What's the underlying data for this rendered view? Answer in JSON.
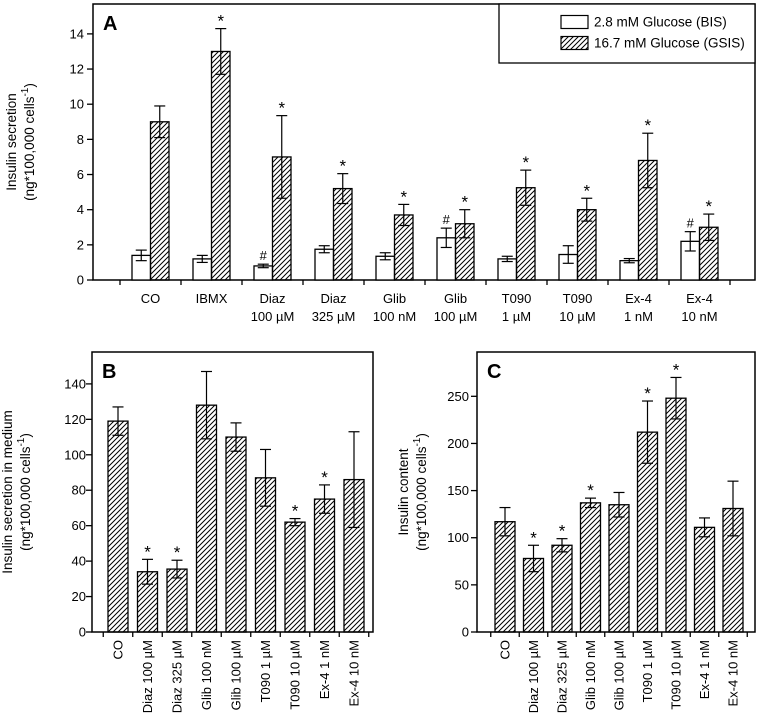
{
  "figure": {
    "background": "#ffffff",
    "foreground": "#000000"
  },
  "chart_data": [
    {
      "id": "A",
      "type": "bar",
      "panel_label": "A",
      "ylabel": "Insulin secretion",
      "ylabel_unit": {
        "prefix": "(ng*100,000 cells",
        "sup": "-1",
        "suffix": ")"
      },
      "ylim": [
        0,
        15.7
      ],
      "yticks": [
        0,
        2,
        4,
        6,
        8,
        10,
        12,
        14
      ],
      "grid": false,
      "categories": [
        [
          "CO"
        ],
        [
          "IBMX"
        ],
        [
          "Diaz",
          "100 µM"
        ],
        [
          "Diaz",
          "325 µM"
        ],
        [
          "Glib",
          "100 nM"
        ],
        [
          "Glib",
          "100 µM"
        ],
        [
          "T090",
          "1 µM"
        ],
        [
          "T090",
          "10 µM"
        ],
        [
          "Ex-4",
          "1 nM"
        ],
        [
          "Ex-4",
          "10 nM"
        ]
      ],
      "series": [
        {
          "name": "2.8 mM Glucose (BIS)",
          "fill": "white",
          "values": [
            1.4,
            1.2,
            0.8,
            1.75,
            1.35,
            2.4,
            1.2,
            1.45,
            1.1,
            2.2
          ],
          "errors": [
            0.3,
            0.2,
            0.1,
            0.2,
            0.2,
            0.55,
            0.15,
            0.5,
            0.12,
            0.55
          ],
          "marks": [
            "",
            "",
            "#",
            "",
            "",
            "#",
            "",
            "",
            "",
            "#"
          ]
        },
        {
          "name": "16.7 mM Glucose (GSIS)",
          "fill": "hatch",
          "values": [
            9.0,
            13.0,
            7.0,
            5.2,
            3.7,
            3.2,
            5.25,
            4.0,
            6.8,
            3.0
          ],
          "errors": [
            0.9,
            1.3,
            2.35,
            0.85,
            0.6,
            0.8,
            1.0,
            0.65,
            1.55,
            0.75
          ],
          "marks": [
            "",
            "*",
            "*",
            "*",
            "*",
            "*",
            "*",
            "*",
            "*",
            "*"
          ]
        }
      ],
      "legend": {
        "position": "top-right",
        "entries": [
          "2.8 mM Glucose (BIS)",
          "16.7 mM Glucose (GSIS)"
        ]
      }
    },
    {
      "id": "B",
      "type": "bar",
      "panel_label": "B",
      "ylabel": "Insulin secretion in medium",
      "ylabel_unit": {
        "prefix": "(ng*100,000 cells",
        "sup": "-1",
        "suffix": ")"
      },
      "ylim": [
        0,
        158
      ],
      "yticks": [
        0,
        20,
        40,
        60,
        80,
        100,
        120,
        140
      ],
      "grid": false,
      "rotated_xlabels": true,
      "categories": [
        "CO",
        "Diaz 100 µM",
        "Diaz 325 µM",
        "Glib 100 nM",
        "Glib 100 µM",
        "T090 1 µM",
        "T090 10 µM",
        "Ex-4 1 nM",
        "Ex-4 10 nM"
      ],
      "series": [
        {
          "name": "",
          "fill": "hatch",
          "values": [
            119,
            34,
            35.5,
            128,
            110,
            87,
            62,
            75,
            86
          ],
          "errors": [
            8,
            7,
            5,
            19,
            8,
            16,
            2,
            8,
            27
          ],
          "marks": [
            "",
            "*",
            "*",
            "",
            "",
            "",
            "*",
            "*",
            ""
          ]
        }
      ]
    },
    {
      "id": "C",
      "type": "bar",
      "panel_label": "C",
      "ylabel": "Insulin content",
      "ylabel_unit": {
        "prefix": "(ng*100,000 cells",
        "sup": "-1",
        "suffix": ")"
      },
      "ylim": [
        0,
        297
      ],
      "yticks": [
        0,
        50,
        100,
        150,
        200,
        250
      ],
      "grid": false,
      "rotated_xlabels": true,
      "categories": [
        "CO",
        "Diaz 100 µM",
        "Diaz 325 µM",
        "Glib 100 nM",
        "Glib 100 µM",
        "T090 1 µM",
        "T090 10 µM",
        "Ex-4 1 nM",
        "Ex-4 10 nM"
      ],
      "series": [
        {
          "name": "",
          "fill": "hatch",
          "values": [
            117,
            78,
            92,
            137,
            135,
            212,
            248,
            111,
            131
          ],
          "errors": [
            15,
            14,
            7,
            5,
            13,
            33,
            22,
            10,
            29
          ],
          "marks": [
            "",
            "*",
            "*",
            "*",
            "",
            "*",
            "*",
            "",
            ""
          ]
        }
      ]
    }
  ]
}
